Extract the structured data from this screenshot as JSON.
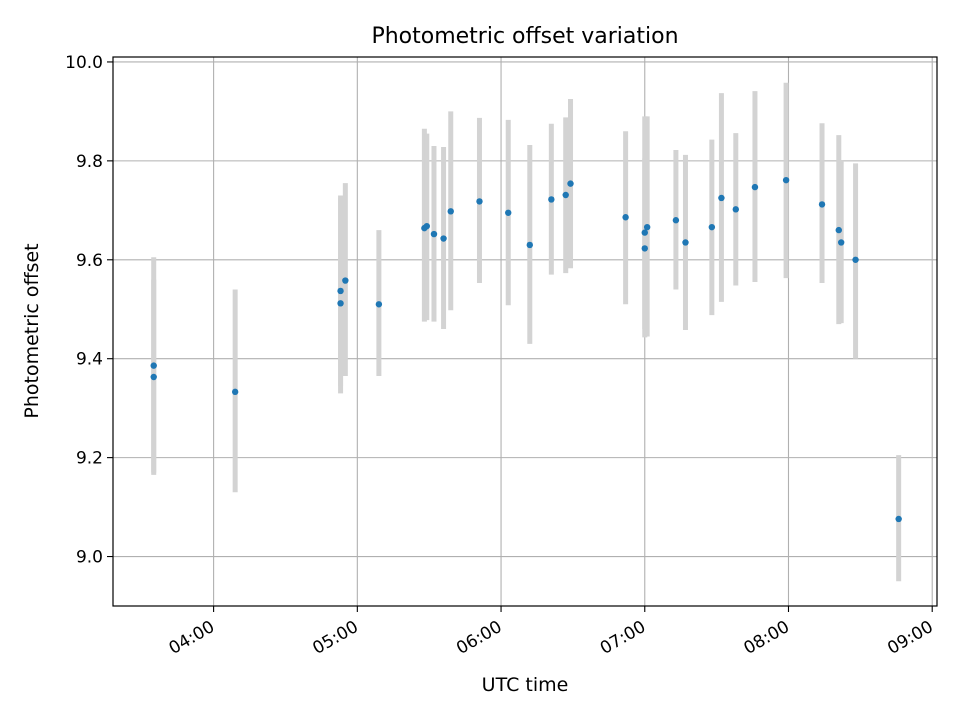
{
  "chart_data": {
    "type": "scatter",
    "title": "Photometric offset variation",
    "xlabel": "UTC time",
    "ylabel": "Photometric offset",
    "x_unit": "UTC time (HH:MM)",
    "xlim": [
      "03:18",
      "09:02"
    ],
    "ylim": [
      8.9,
      10.01
    ],
    "xticks": [
      "04:00",
      "05:00",
      "06:00",
      "07:00",
      "08:00",
      "09:00"
    ],
    "yticks": [
      "9.0",
      "9.2",
      "9.4",
      "9.6",
      "9.8",
      "10.0"
    ],
    "grid": true,
    "marker_color": "#1f77b4",
    "errorbar_color": "#d3d3d3",
    "points": [
      {
        "t": "03:35",
        "y": 9.386,
        "lo": 9.17,
        "hi": 9.605
      },
      {
        "t": "03:35",
        "y": 9.363,
        "lo": 9.165,
        "hi": 9.56
      },
      {
        "t": "04:09",
        "y": 9.333,
        "lo": 9.13,
        "hi": 9.54
      },
      {
        "t": "04:53",
        "y": 9.512,
        "lo": 9.33,
        "hi": 9.73
      },
      {
        "t": "04:53",
        "y": 9.537,
        "lo": 9.345,
        "hi": 9.725
      },
      {
        "t": "04:55",
        "y": 9.558,
        "lo": 9.365,
        "hi": 9.755
      },
      {
        "t": "05:09",
        "y": 9.51,
        "lo": 9.365,
        "hi": 9.66
      },
      {
        "t": "05:28",
        "y": 9.664,
        "lo": 9.475,
        "hi": 9.865
      },
      {
        "t": "05:29",
        "y": 9.668,
        "lo": 9.478,
        "hi": 9.855
      },
      {
        "t": "05:32",
        "y": 9.652,
        "lo": 9.475,
        "hi": 9.83
      },
      {
        "t": "05:36",
        "y": 9.643,
        "lo": 9.46,
        "hi": 9.828
      },
      {
        "t": "05:39",
        "y": 9.698,
        "lo": 9.498,
        "hi": 9.9
      },
      {
        "t": "05:51",
        "y": 9.718,
        "lo": 9.553,
        "hi": 9.887
      },
      {
        "t": "06:03",
        "y": 9.695,
        "lo": 9.508,
        "hi": 9.883
      },
      {
        "t": "06:12",
        "y": 9.63,
        "lo": 9.43,
        "hi": 9.832
      },
      {
        "t": "06:21",
        "y": 9.722,
        "lo": 9.57,
        "hi": 9.875
      },
      {
        "t": "06:27",
        "y": 9.731,
        "lo": 9.573,
        "hi": 9.888
      },
      {
        "t": "06:29",
        "y": 9.754,
        "lo": 9.583,
        "hi": 9.925
      },
      {
        "t": "06:52",
        "y": 9.686,
        "lo": 9.51,
        "hi": 9.86
      },
      {
        "t": "07:00",
        "y": 9.623,
        "lo": 9.443,
        "hi": 9.805
      },
      {
        "t": "07:00",
        "y": 9.655,
        "lo": 9.46,
        "hi": 9.89
      },
      {
        "t": "07:01",
        "y": 9.666,
        "lo": 9.445,
        "hi": 9.89
      },
      {
        "t": "07:13",
        "y": 9.68,
        "lo": 9.54,
        "hi": 9.822
      },
      {
        "t": "07:17",
        "y": 9.635,
        "lo": 9.458,
        "hi": 9.812
      },
      {
        "t": "07:28",
        "y": 9.666,
        "lo": 9.488,
        "hi": 9.843
      },
      {
        "t": "07:32",
        "y": 9.725,
        "lo": 9.515,
        "hi": 9.937
      },
      {
        "t": "07:38",
        "y": 9.702,
        "lo": 9.548,
        "hi": 9.856
      },
      {
        "t": "07:46",
        "y": 9.747,
        "lo": 9.555,
        "hi": 9.941
      },
      {
        "t": "07:59",
        "y": 9.761,
        "lo": 9.563,
        "hi": 9.958
      },
      {
        "t": "08:14",
        "y": 9.712,
        "lo": 9.553,
        "hi": 9.876
      },
      {
        "t": "08:21",
        "y": 9.66,
        "lo": 9.47,
        "hi": 9.852
      },
      {
        "t": "08:22",
        "y": 9.635,
        "lo": 9.472,
        "hi": 9.8
      },
      {
        "t": "08:28",
        "y": 9.6,
        "lo": 9.4,
        "hi": 9.795
      },
      {
        "t": "08:46",
        "y": 9.076,
        "lo": 8.95,
        "hi": 9.205
      }
    ]
  }
}
